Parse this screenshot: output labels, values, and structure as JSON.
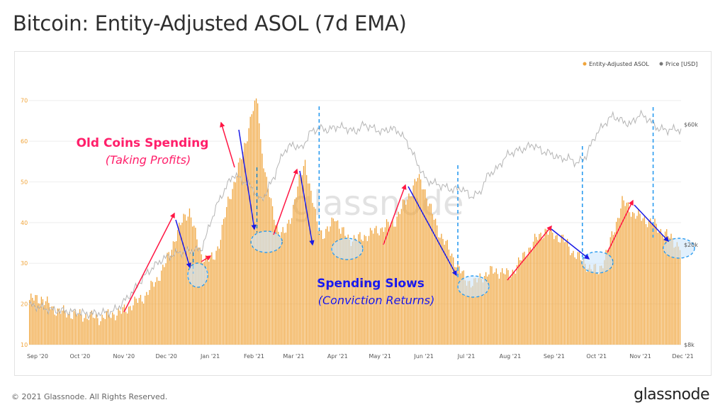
{
  "title": "Bitcoin: Entity-Adjusted ASOL (7d EMA)",
  "footer": {
    "copyright": "© 2021 Glassnode. All Rights Reserved.",
    "logo": "glassnode"
  },
  "watermark": "glassnode",
  "colors": {
    "bar": "#f0a43a",
    "price": "#b5b5b5",
    "up_arrow": "#ff1744",
    "down_arrow": "#1a1ae6",
    "dashed": "#2b9cf0",
    "ellipse_fill": "#cde6fb",
    "old_coins": "#ff1f6a",
    "spending": "#1a1aee"
  },
  "legend": [
    {
      "label": "Entity-Adjusted ASOL",
      "color": "#f0a43a"
    },
    {
      "label": "Price [USD]",
      "color": "#777777"
    }
  ],
  "annotations": {
    "old_coins_title": "Old Coins Spending",
    "old_coins_sub": "(Taking Profits)",
    "spending_title": "Spending Slows",
    "spending_sub": "(Conviction Returns)"
  },
  "chart_data": {
    "type": "bar",
    "x_tick_labels": [
      "Sep '20",
      "Oct '20",
      "Nov '20",
      "Dec '20",
      "Jan '21",
      "Feb '21",
      "Mar '21",
      "Apr '21",
      "May '21",
      "Jun '21",
      "Jul '21",
      "Aug '21",
      "Sep '21",
      "Oct '21",
      "Nov '21",
      "Dec '21"
    ],
    "ylim_left": [
      10,
      75
    ],
    "y_ticks_left": [
      10,
      20,
      30,
      40,
      50,
      60,
      70
    ],
    "y_ticks_right": [
      "$8k",
      "$20k",
      "$60k"
    ],
    "y_scale_right": "log",
    "series": [
      {
        "name": "Entity-Adjusted ASOL",
        "kind": "bar",
        "anchors": [
          [
            0,
            21
          ],
          [
            8,
            21.5
          ],
          [
            15,
            19
          ],
          [
            22,
            18
          ],
          [
            30,
            17.5
          ],
          [
            40,
            17
          ],
          [
            48,
            16.5
          ],
          [
            56,
            17.5
          ],
          [
            62,
            18
          ],
          [
            70,
            20
          ],
          [
            78,
            22
          ],
          [
            86,
            26
          ],
          [
            92,
            30
          ],
          [
            98,
            36
          ],
          [
            104,
            41
          ],
          [
            108,
            43
          ],
          [
            112,
            37
          ],
          [
            116,
            32
          ],
          [
            120,
            31
          ],
          [
            124,
            31
          ],
          [
            128,
            35
          ],
          [
            134,
            45
          ],
          [
            140,
            52
          ],
          [
            146,
            60
          ],
          [
            150,
            67
          ],
          [
            154,
            70
          ],
          [
            156,
            60
          ],
          [
            160,
            50
          ],
          [
            164,
            43
          ],
          [
            168,
            38
          ],
          [
            172,
            37
          ],
          [
            176,
            41
          ],
          [
            182,
            50
          ],
          [
            186,
            55
          ],
          [
            190,
            47
          ],
          [
            194,
            40
          ],
          [
            198,
            37
          ],
          [
            202,
            38
          ],
          [
            206,
            42
          ],
          [
            210,
            38
          ],
          [
            216,
            36
          ],
          [
            222,
            36
          ],
          [
            228,
            37
          ],
          [
            234,
            38
          ],
          [
            240,
            39
          ],
          [
            246,
            40
          ],
          [
            252,
            44
          ],
          [
            258,
            48
          ],
          [
            262,
            51
          ],
          [
            266,
            49
          ],
          [
            270,
            44
          ],
          [
            276,
            38
          ],
          [
            282,
            34
          ],
          [
            288,
            30
          ],
          [
            294,
            26
          ],
          [
            300,
            25
          ],
          [
            306,
            27
          ],
          [
            312,
            28
          ],
          [
            318,
            28
          ],
          [
            324,
            27
          ],
          [
            330,
            30
          ],
          [
            336,
            33
          ],
          [
            342,
            36
          ],
          [
            348,
            38
          ],
          [
            354,
            37
          ],
          [
            360,
            36
          ],
          [
            366,
            33
          ],
          [
            372,
            31
          ],
          [
            378,
            29
          ],
          [
            384,
            28
          ],
          [
            390,
            33
          ],
          [
            396,
            40
          ],
          [
            400,
            45
          ],
          [
            404,
            44
          ],
          [
            408,
            42
          ],
          [
            414,
            41
          ],
          [
            420,
            40
          ],
          [
            426,
            38
          ],
          [
            430,
            37
          ],
          [
            436,
            35
          ],
          [
            440,
            34
          ]
        ]
      },
      {
        "name": "Price [USD]",
        "kind": "line",
        "unit": "USD",
        "anchors": [
          [
            0,
            11500
          ],
          [
            15,
            11000
          ],
          [
            30,
            10800
          ],
          [
            40,
            10600
          ],
          [
            56,
            10800
          ],
          [
            62,
            11500
          ],
          [
            70,
            13000
          ],
          [
            80,
            15500
          ],
          [
            90,
            17500
          ],
          [
            100,
            18500
          ],
          [
            110,
            19000
          ],
          [
            116,
            19000
          ],
          [
            120,
            22000
          ],
          [
            126,
            28000
          ],
          [
            132,
            33000
          ],
          [
            138,
            38000
          ],
          [
            144,
            36000
          ],
          [
            150,
            34000
          ],
          [
            156,
            30000
          ],
          [
            160,
            32000
          ],
          [
            166,
            38000
          ],
          [
            172,
            47000
          ],
          [
            178,
            50000
          ],
          [
            184,
            48000
          ],
          [
            190,
            56000
          ],
          [
            196,
            58000
          ],
          [
            202,
            57000
          ],
          [
            208,
            59000
          ],
          [
            214,
            58000
          ],
          [
            220,
            56000
          ],
          [
            226,
            60000
          ],
          [
            232,
            58000
          ],
          [
            238,
            56000
          ],
          [
            244,
            58000
          ],
          [
            250,
            56000
          ],
          [
            256,
            50000
          ],
          [
            262,
            42000
          ],
          [
            268,
            36000
          ],
          [
            274,
            35000
          ],
          [
            280,
            34000
          ],
          [
            286,
            33000
          ],
          [
            292,
            33500
          ],
          [
            298,
            31000
          ],
          [
            304,
            32000
          ],
          [
            310,
            38000
          ],
          [
            316,
            40000
          ],
          [
            322,
            45000
          ],
          [
            328,
            47000
          ],
          [
            334,
            48000
          ],
          [
            340,
            50000
          ],
          [
            346,
            47000
          ],
          [
            352,
            46000
          ],
          [
            358,
            44000
          ],
          [
            364,
            44000
          ],
          [
            370,
            42000
          ],
          [
            376,
            45000
          ],
          [
            382,
            54000
          ],
          [
            388,
            60000
          ],
          [
            394,
            65000
          ],
          [
            400,
            62000
          ],
          [
            406,
            60000
          ],
          [
            412,
            66000
          ],
          [
            418,
            63000
          ],
          [
            424,
            58000
          ],
          [
            430,
            57000
          ],
          [
            436,
            57500
          ],
          [
            440,
            57000
          ]
        ]
      }
    ]
  }
}
